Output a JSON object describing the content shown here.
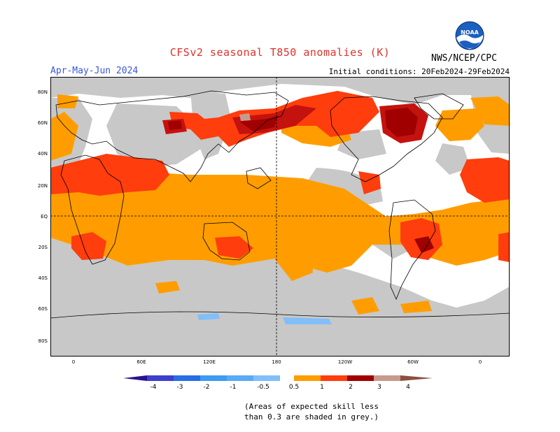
{
  "header": {
    "title": "CFSv2 seasonal T850 anomalies (K)",
    "season": "Apr-May-Jun 2024",
    "initial_conditions": "Initial conditions: 20Feb2024-29Feb2024",
    "agency": "NWS/NCEP/CPC",
    "logo_text": "NOAA"
  },
  "map": {
    "lat_labels": [
      "80N",
      "60N",
      "40N",
      "20N",
      "EQ",
      "20S",
      "40S",
      "60S",
      "80S"
    ],
    "lon_labels": [
      "0",
      "60E",
      "120E",
      "180",
      "120W",
      "60W",
      "0"
    ]
  },
  "legend": {
    "labels": [
      "-4",
      "-3",
      "-2",
      "-1",
      "-0.5",
      "0.5",
      "1",
      "2",
      "3",
      "4"
    ],
    "colors": {
      "lt_m4": "#2a1190",
      "m4_m3": "#3e3fce",
      "m3_m2": "#2a6de4",
      "m2_m1": "#3d9bf2",
      "m1_m05": "#82bef8",
      "neutral": "#ffffff",
      "p05_p1": "#ff9d00",
      "p1_p2": "#ff3d0d",
      "p2_p3": "#e01010",
      "p3_p4": "#a00000",
      "p4_p5": "#c89a8e",
      "gt_p5": "#8b5040",
      "low_skill": "#c8c8c8"
    }
  },
  "footnote": {
    "line1": "(Areas of expected skill less",
    "line2": "than 0.3 are shaded in grey.)"
  }
}
